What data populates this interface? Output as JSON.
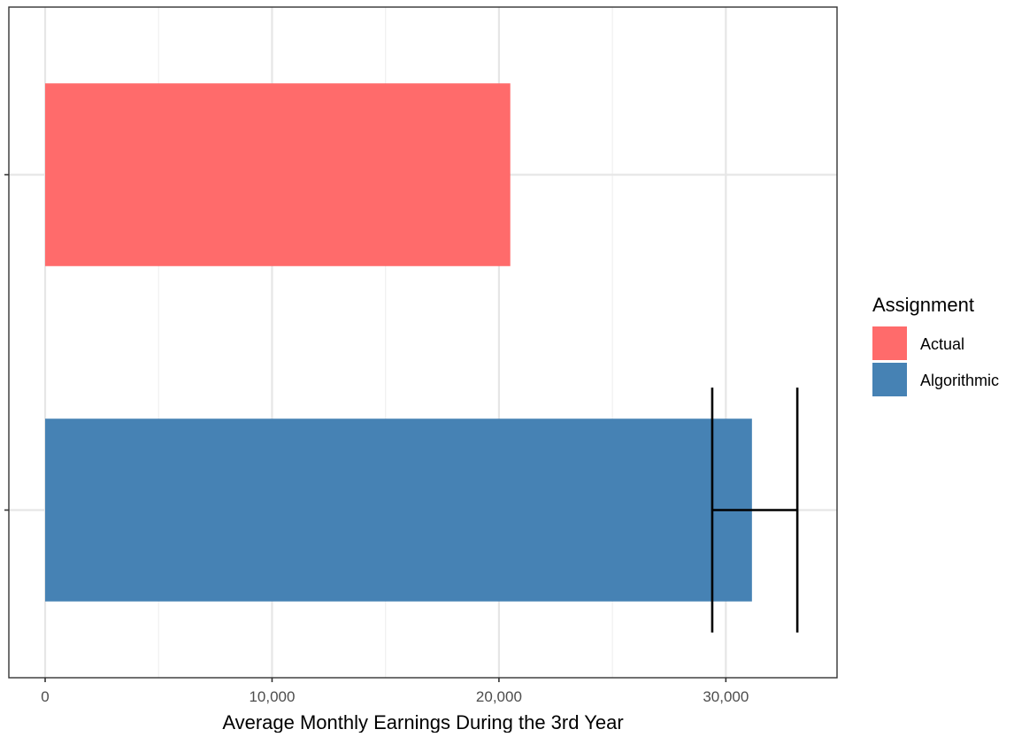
{
  "chart_data": {
    "type": "bar",
    "orientation": "horizontal",
    "categories": [
      "Actual",
      "Algorithmic"
    ],
    "values": [
      20500,
      31150
    ],
    "error_bars": [
      null,
      {
        "low": 29400,
        "high": 33150
      }
    ],
    "xlabel": "Average Monthly Earnings During the 3rd Year",
    "ylabel": "",
    "xlim": [
      -1600,
      34900
    ],
    "xticks": [
      0,
      10000,
      20000,
      30000
    ],
    "xtick_labels": [
      "0",
      "10,000",
      "20,000",
      "30,000"
    ],
    "grid": true,
    "legend": {
      "title": "Assignment",
      "position": "right",
      "entries": [
        {
          "label": "Actual",
          "color": "#ff6b6b"
        },
        {
          "label": "Algorithmic",
          "color": "#4682b4"
        }
      ]
    },
    "colors": {
      "Actual": "#ff6b6b",
      "Algorithmic": "#4682b4"
    }
  }
}
